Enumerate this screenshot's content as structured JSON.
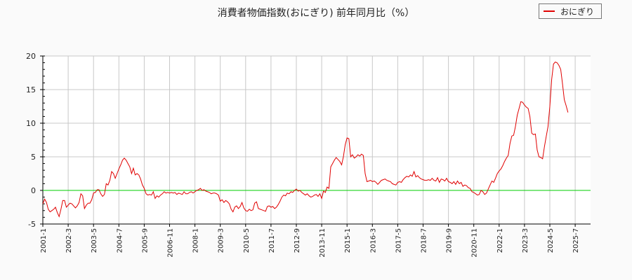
{
  "chart_data": {
    "type": "line",
    "title": "消費者物価指数(おにぎり) 前年同月比（%）",
    "xlabel": "",
    "ylabel": "",
    "ylim": [
      -5,
      20
    ],
    "yticks": [
      -5,
      0,
      5,
      10,
      15,
      20
    ],
    "xticks": [
      "2001-1",
      "2002-3",
      "2003-5",
      "2004-7",
      "2005-9",
      "2006-11",
      "2008-1",
      "2009-3",
      "2010-5",
      "2011-7",
      "2012-9",
      "2013-11",
      "2015-1",
      "2016-3",
      "2017-5",
      "2018-7",
      "2019-9",
      "2020-11",
      "2022-1",
      "2023-3",
      "2024-5",
      "2025-7"
    ],
    "grid": true,
    "legend_position": "top-right",
    "reference_line": {
      "value": 0,
      "color": "#00cc00"
    },
    "series": [
      {
        "name": "おにぎり",
        "color": "#e00000",
        "start": "2001-1",
        "frequency": "monthly",
        "values": [
          -2.0,
          -1.3,
          -1.8,
          -2.8,
          -3.2,
          -3.0,
          -2.8,
          -2.5,
          -3.3,
          -3.9,
          -2.8,
          -1.5,
          -1.5,
          -2.5,
          -2.2,
          -1.9,
          -2.0,
          -2.3,
          -2.6,
          -2.3,
          -1.8,
          -0.5,
          -0.8,
          -2.7,
          -2.2,
          -1.9,
          -1.9,
          -1.4,
          -0.4,
          -0.3,
          0.1,
          0.1,
          -0.5,
          -0.9,
          -0.6,
          1.0,
          0.8,
          1.5,
          2.8,
          2.5,
          1.8,
          2.5,
          3.2,
          3.8,
          4.5,
          4.8,
          4.5,
          4.0,
          3.5,
          2.5,
          3.3,
          2.3,
          2.5,
          2.3,
          1.7,
          0.8,
          0.3,
          -0.5,
          -0.7,
          -0.6,
          -0.7,
          -0.2,
          -1.2,
          -0.8,
          -1.0,
          -0.7,
          -0.5,
          -0.2,
          -0.4,
          -0.3,
          -0.4,
          -0.3,
          -0.4,
          -0.3,
          -0.6,
          -0.4,
          -0.5,
          -0.6,
          -0.2,
          -0.5,
          -0.5,
          -0.3,
          -0.2,
          -0.4,
          -0.2,
          0.0,
          0.1,
          0.3,
          0.0,
          0.1,
          -0.1,
          -0.2,
          -0.3,
          -0.5,
          -0.4,
          -0.4,
          -0.5,
          -0.7,
          -1.6,
          -1.4,
          -1.8,
          -1.5,
          -1.7,
          -2.0,
          -2.8,
          -3.2,
          -2.5,
          -2.3,
          -2.7,
          -2.4,
          -1.8,
          -2.6,
          -3.0,
          -3.1,
          -2.8,
          -3.0,
          -2.9,
          -1.9,
          -1.7,
          -2.7,
          -2.8,
          -2.9,
          -3.0,
          -3.1,
          -2.4,
          -2.3,
          -2.5,
          -2.4,
          -2.7,
          -2.5,
          -2.1,
          -1.6,
          -1.0,
          -0.7,
          -0.8,
          -0.4,
          -0.5,
          -0.2,
          -0.3,
          0.0,
          0.2,
          -0.1,
          0.0,
          -0.3,
          -0.5,
          -0.7,
          -0.5,
          -0.8,
          -1.0,
          -0.9,
          -0.7,
          -0.6,
          -0.9,
          -0.5,
          -1.2,
          -0.1,
          -0.3,
          0.5,
          0.3,
          3.5,
          4.0,
          4.5,
          4.9,
          4.6,
          4.3,
          3.8,
          5.0,
          6.8,
          7.8,
          7.7,
          5.0,
          5.3,
          4.8,
          5.0,
          5.3,
          5.1,
          5.4,
          5.2,
          2.5,
          1.3,
          1.4,
          1.5,
          1.3,
          1.4,
          1.2,
          0.9,
          1.2,
          1.5,
          1.6,
          1.7,
          1.5,
          1.4,
          1.3,
          1.0,
          0.9,
          0.8,
          1.2,
          1.3,
          1.2,
          1.6,
          1.9,
          2.1,
          2.0,
          2.3,
          2.1,
          2.8,
          2.0,
          2.2,
          1.9,
          1.7,
          1.6,
          1.5,
          1.5,
          1.6,
          1.5,
          1.8,
          1.5,
          1.4,
          1.9,
          1.2,
          1.7,
          1.6,
          1.4,
          1.8,
          1.3,
          1.2,
          1.0,
          1.3,
          0.9,
          1.4,
          1.0,
          1.2,
          0.6,
          0.8,
          0.7,
          0.4,
          0.3,
          -0.2,
          -0.3,
          -0.5,
          -0.7,
          -0.6,
          0.0,
          -0.2,
          -0.6,
          -0.4,
          0.2,
          0.8,
          1.4,
          1.2,
          1.8,
          2.5,
          2.9,
          3.2,
          3.7,
          4.3,
          4.8,
          5.2,
          7.0,
          8.1,
          8.2,
          9.5,
          11.2,
          12.2,
          13.2,
          13.1,
          12.7,
          12.4,
          12.2,
          11.0,
          8.5,
          8.3,
          8.4,
          6.0,
          5.0,
          4.9,
          4.7,
          6.5,
          8.0,
          9.5,
          12.5,
          16.5,
          18.8,
          19.1,
          19.0,
          18.6,
          18.0,
          15.8,
          13.5,
          12.6,
          11.6
        ]
      }
    ]
  },
  "legend": {
    "label": "おにぎり"
  }
}
